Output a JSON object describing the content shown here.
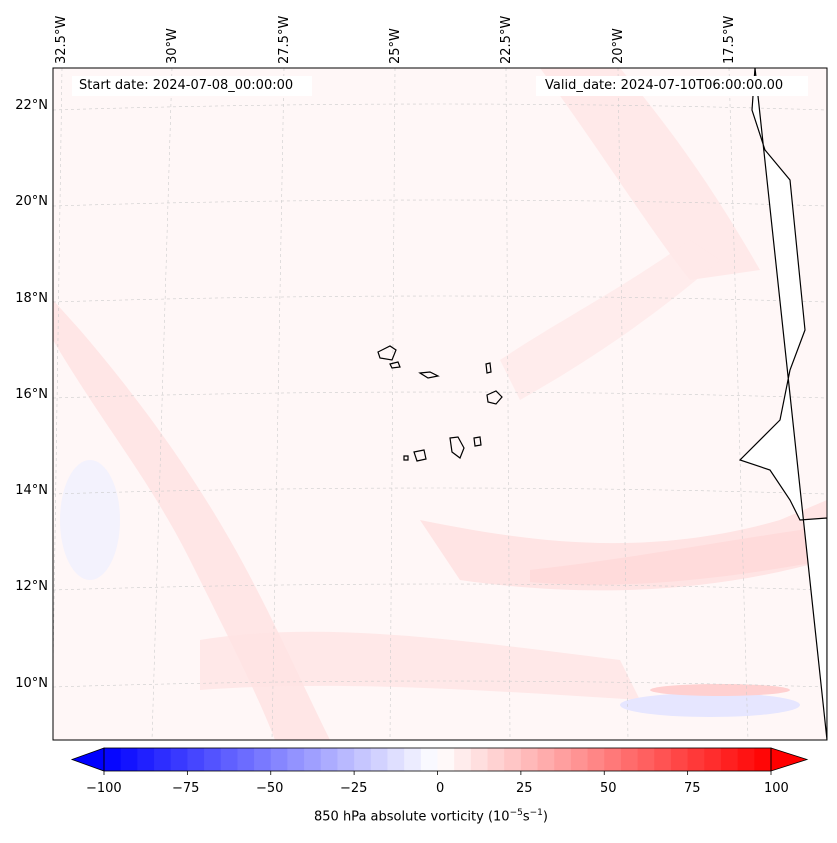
{
  "map": {
    "longitude_labels": [
      "32.5°W",
      "30°W",
      "27.5°W",
      "25°W",
      "22.5°W",
      "20°W",
      "17.5°W"
    ],
    "latitude_labels": [
      "22°N",
      "20°N",
      "18°N",
      "16°N",
      "14°N",
      "12°N",
      "10°N"
    ],
    "start_date_text": "Start date: 2024-07-08_00:00:00",
    "valid_date_text": "Valid_date: 2024-07-10T06:00:00.00"
  },
  "colorbar": {
    "ticks": [
      "−100",
      "−75",
      "−50",
      "−25",
      "0",
      "25",
      "50",
      "75",
      "100"
    ],
    "tick_values": [
      -100,
      -75,
      -50,
      -25,
      0,
      25,
      50,
      75,
      100
    ],
    "min": -100,
    "max": 100,
    "label_main": "850 hPa absolute vorticity (10",
    "label_exp1": "−5",
    "label_mid": "s",
    "label_exp2": "−1",
    "label_end": ")",
    "negative_color": "#0000ff",
    "zero_color": "#ffffff",
    "positive_color": "#ff0000"
  }
}
